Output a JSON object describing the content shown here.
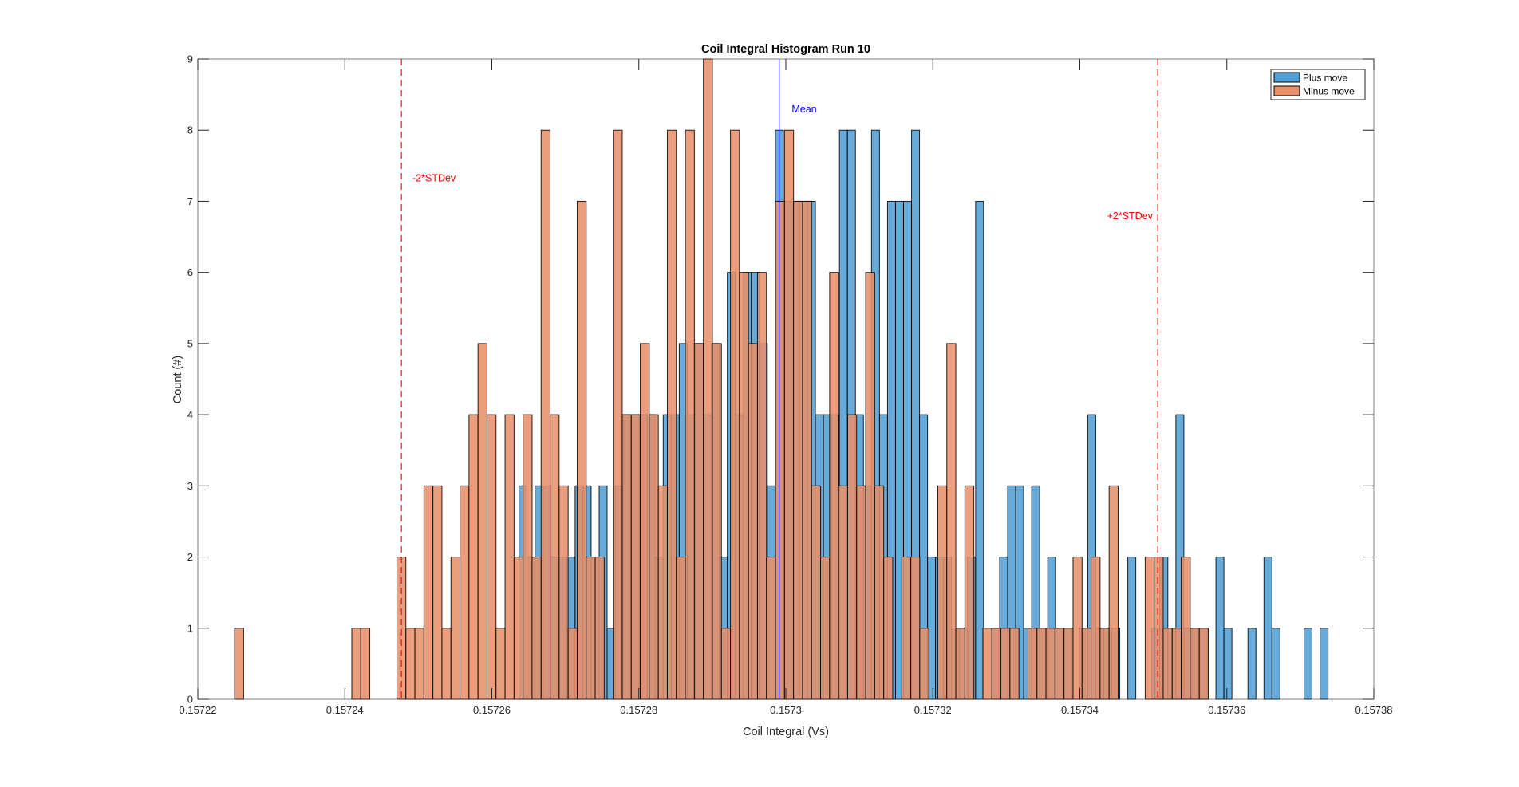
{
  "chart_data": {
    "type": "bar",
    "subtype": "overlaid-histogram",
    "title": "Coil Integral Histogram Run 10",
    "xlabel": "Coil Integral (Vs)",
    "ylabel": "Count (#)",
    "xlim": [
      0.15722,
      0.15738
    ],
    "ylim": [
      0,
      9
    ],
    "xticks": [
      0.15722,
      0.15724,
      0.15726,
      0.15728,
      0.1573,
      0.15732,
      0.15734,
      0.15736,
      0.15738
    ],
    "xtick_labels": [
      "0.15722",
      "0.15724",
      "0.15726",
      "0.15728",
      "0.1573",
      "0.15732",
      "0.15734",
      "0.15736",
      "0.15738"
    ],
    "yticks": [
      0,
      1,
      2,
      3,
      4,
      5,
      6,
      7,
      8,
      9
    ],
    "ytick_labels": [
      "0",
      "1",
      "2",
      "3",
      "4",
      "5",
      "6",
      "7",
      "8",
      "9"
    ],
    "grid": false,
    "legend_position": "top-right",
    "series": [
      {
        "name": "Plus move",
        "color": "#4f9fd4",
        "opacity": 0.87,
        "bin_start": 0.1572637,
        "bin_width": 1.0898e-06,
        "counts": [
          3,
          2,
          3,
          3,
          2,
          2,
          2,
          3,
          3,
          2,
          3,
          1,
          3,
          4,
          4,
          4,
          4,
          2,
          4,
          4,
          5,
          4,
          5,
          4,
          5,
          2,
          6,
          4,
          6,
          6,
          5,
          3,
          8,
          7,
          7,
          7,
          7,
          4,
          4,
          4,
          8,
          8,
          4,
          3,
          8,
          4,
          7,
          7,
          7,
          8,
          4,
          2,
          2,
          2,
          1,
          1,
          2,
          7,
          0,
          1,
          2,
          3,
          3,
          1,
          3,
          1,
          2,
          1,
          1,
          0,
          1,
          4,
          1,
          1,
          1,
          0,
          2,
          0,
          0,
          1,
          2,
          1,
          4,
          1,
          1,
          1,
          0,
          2,
          1,
          0,
          0,
          1,
          0,
          2,
          1,
          0,
          0,
          0,
          1,
          0,
          1
        ]
      },
      {
        "name": "Minus move",
        "color": "#e8906a",
        "opacity": 0.87,
        "bin_start": 0.157225,
        "bin_width": 1.2266e-06,
        "counts": [
          1,
          0,
          0,
          0,
          0,
          0,
          0,
          0,
          0,
          0,
          0,
          0,
          0,
          1,
          1,
          0,
          0,
          0,
          2,
          1,
          1,
          3,
          3,
          1,
          2,
          3,
          4,
          5,
          4,
          1,
          4,
          2,
          4,
          2,
          8,
          4,
          3,
          1,
          7,
          2,
          2,
          0,
          8,
          4,
          4,
          5,
          4,
          3,
          8,
          2,
          8,
          5,
          9,
          5,
          1,
          8,
          6,
          5,
          6,
          2,
          7,
          8,
          7,
          7,
          3,
          2,
          6,
          3,
          4,
          3,
          6,
          3,
          2,
          0,
          2,
          2,
          1,
          0,
          3,
          5,
          1,
          3,
          0,
          1,
          1,
          1,
          1,
          0,
          1,
          1,
          1,
          1,
          1,
          2,
          1,
          2,
          1,
          3,
          0,
          0,
          0,
          2,
          2,
          1,
          1,
          2,
          1,
          1
        ]
      }
    ],
    "reference_lines": [
      {
        "name": "mean",
        "label": "Mean",
        "x": 0.1572991,
        "color": "#0000ff",
        "style": "solid"
      },
      {
        "name": "minus-2-stdev",
        "label": "-2*STDev",
        "x": 0.1572477,
        "color": "#ff0000",
        "style": "dashed"
      },
      {
        "name": "plus-2-stdev",
        "label": "+2*STDev",
        "x": 0.1573506,
        "color": "#ff0000",
        "style": "dashed"
      }
    ],
    "annotations": [
      {
        "text": "Mean",
        "x": 0.1573008,
        "y": 8.25,
        "color": "#0000ff"
      },
      {
        "text": "-2*STDev",
        "x": 0.1572492,
        "y": 7.28,
        "color": "#ff0000"
      },
      {
        "text": "+2*STDev",
        "x": 0.1573437,
        "y": 6.75,
        "color": "#ff0000"
      }
    ]
  }
}
